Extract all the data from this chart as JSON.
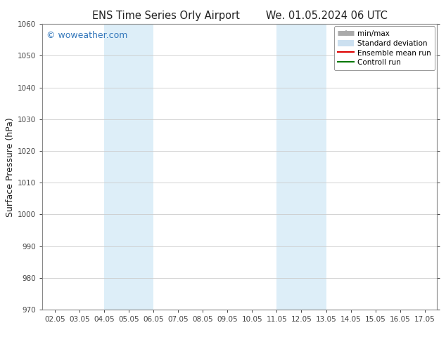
{
  "title_left": "ENS Time Series Orly Airport",
  "title_right": "We. 01.05.2024 06 UTC",
  "ylabel": "Surface Pressure (hPa)",
  "ylim": [
    970,
    1060
  ],
  "yticks": [
    970,
    980,
    990,
    1000,
    1010,
    1020,
    1030,
    1040,
    1050,
    1060
  ],
  "xtick_labels": [
    "02.05",
    "03.05",
    "04.05",
    "05.05",
    "06.05",
    "07.05",
    "08.05",
    "09.05",
    "10.05",
    "11.05",
    "12.05",
    "13.05",
    "14.05",
    "15.05",
    "16.05",
    "17.05"
  ],
  "xlim_start": 0,
  "xlim_end": 15,
  "shaded_bands": [
    {
      "xstart": 2,
      "xend": 4,
      "color": "#ddeef8"
    },
    {
      "xstart": 9,
      "xend": 11,
      "color": "#ddeef8"
    }
  ],
  "watermark": "© woweather.com",
  "watermark_color": "#3377bb",
  "legend_items": [
    {
      "label": "min/max",
      "color": "#aaaaaa",
      "lw": 5
    },
    {
      "label": "Standard deviation",
      "color": "#cce0f0",
      "lw": 5
    },
    {
      "label": "Ensemble mean run",
      "color": "#dd0000",
      "lw": 1.5
    },
    {
      "label": "Controll run",
      "color": "#007700",
      "lw": 1.5
    }
  ],
  "bg_color": "#ffffff",
  "spine_color": "#888888",
  "grid_color": "#cccccc",
  "tick_color": "#444444",
  "text_color": "#222222",
  "title_fontsize": 10.5,
  "tick_fontsize": 7.5,
  "ylabel_fontsize": 9,
  "watermark_fontsize": 9,
  "legend_fontsize": 7.5
}
